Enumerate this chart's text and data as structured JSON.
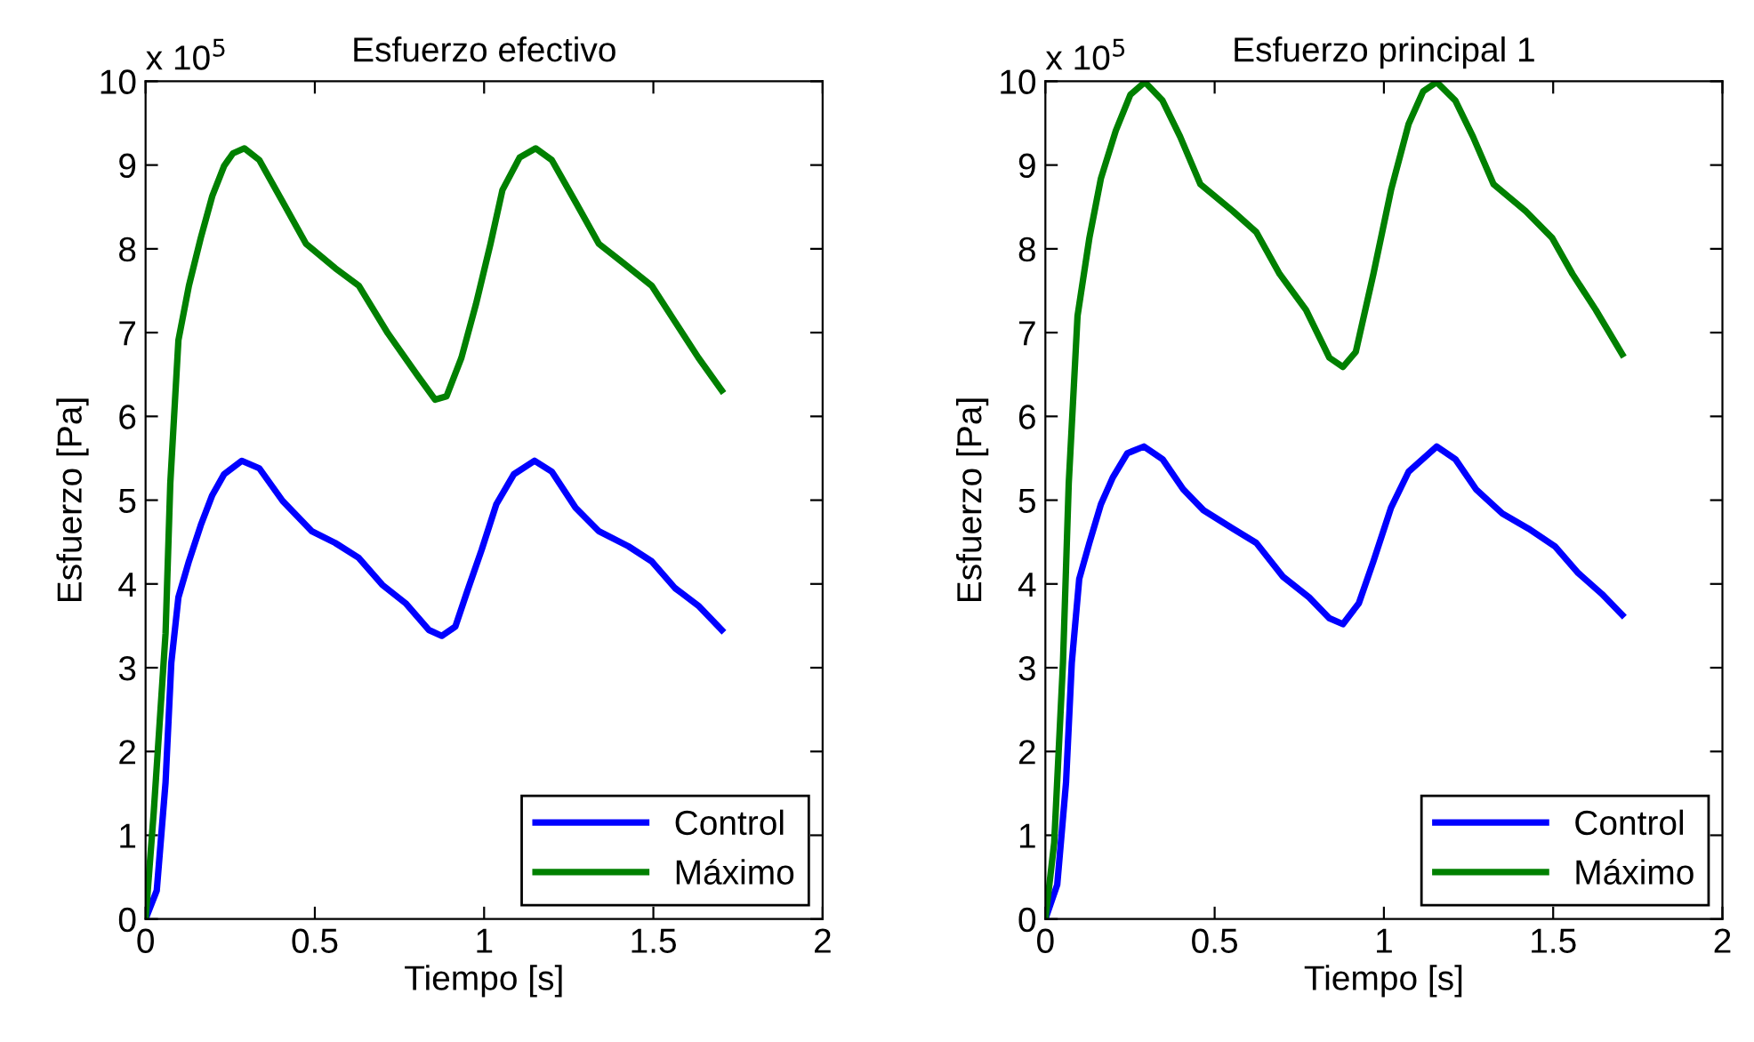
{
  "chart_data": [
    {
      "type": "line",
      "title": "Esfuerzo efectivo",
      "xlabel": "Tiempo [s]",
      "ylabel": "Esfuerzo [Pa]",
      "annotations": [
        "x 10$^{5}$"
      ],
      "xlim": [
        0,
        2
      ],
      "xticks": [
        0,
        0.5,
        1,
        1.5,
        2
      ],
      "ylim": [
        0,
        10
      ],
      "yticks": [
        0,
        1,
        2,
        3,
        4,
        5,
        6,
        7,
        8,
        9,
        10
      ],
      "grid": false,
      "legend": "bottom right",
      "series": [
        {
          "name": "Control",
          "color": "#0000ff",
          "x": [
            0,
            0.033,
            0.059,
            0.076,
            0.097,
            0.128,
            0.163,
            0.197,
            0.232,
            0.284,
            0.336,
            0.405,
            0.491,
            0.56,
            0.63,
            0.699,
            0.768,
            0.837,
            0.875,
            0.915,
            0.95,
            0.993,
            1.036,
            1.088,
            1.149,
            1.2,
            1.27,
            1.339,
            1.426,
            1.495,
            1.564,
            1.633,
            1.702
          ],
          "values": [
            0,
            0.34,
            1.63,
            3.06,
            3.84,
            4.27,
            4.7,
            5.06,
            5.31,
            5.47,
            5.38,
            4.99,
            4.63,
            4.49,
            4.31,
            3.99,
            3.77,
            3.45,
            3.38,
            3.49,
            3.91,
            4.41,
            4.95,
            5.31,
            5.47,
            5.34,
            4.91,
            4.63,
            4.45,
            4.27,
            3.95,
            3.74,
            3.45
          ]
        },
        {
          "name": "Máximo",
          "color": "#008000",
          "x": [
            0,
            0.024,
            0.059,
            0.073,
            0.097,
            0.128,
            0.163,
            0.197,
            0.232,
            0.258,
            0.292,
            0.336,
            0.405,
            0.474,
            0.56,
            0.63,
            0.716,
            0.803,
            0.855,
            0.889,
            0.933,
            0.976,
            1.019,
            1.054,
            1.105,
            1.152,
            1.2,
            1.27,
            1.339,
            1.408,
            1.495,
            1.564,
            1.633,
            1.702
          ],
          "values": [
            0,
            1.27,
            3.41,
            5.2,
            6.91,
            7.56,
            8.13,
            8.63,
            8.99,
            9.14,
            9.2,
            9.06,
            8.56,
            8.06,
            7.77,
            7.56,
            6.99,
            6.49,
            6.2,
            6.24,
            6.7,
            7.34,
            8.06,
            8.7,
            9.09,
            9.2,
            9.06,
            8.56,
            8.06,
            7.84,
            7.56,
            7.13,
            6.7,
            6.31
          ]
        }
      ]
    },
    {
      "type": "line",
      "title": "Esfuerzo principal 1",
      "xlabel": "Tiempo [s]",
      "ylabel": "Esfuerzo [Pa]",
      "annotations": [
        "x 10$^{5}$"
      ],
      "xlim": [
        0,
        2
      ],
      "xticks": [
        0,
        0.5,
        1,
        1.5,
        2
      ],
      "ylim": [
        0,
        10
      ],
      "yticks": [
        0,
        1,
        2,
        3,
        4,
        5,
        6,
        7,
        8,
        9,
        10
      ],
      "grid": false,
      "legend": "bottom right",
      "series": [
        {
          "name": "Control",
          "color": "#0000ff",
          "x": [
            0,
            0.035,
            0.061,
            0.078,
            0.1,
            0.13,
            0.164,
            0.199,
            0.242,
            0.291,
            0.346,
            0.407,
            0.467,
            0.554,
            0.623,
            0.701,
            0.779,
            0.839,
            0.879,
            0.926,
            0.969,
            1.021,
            1.073,
            1.156,
            1.211,
            1.272,
            1.35,
            1.427,
            1.505,
            1.574,
            1.644,
            1.704
          ],
          "values": [
            0,
            0.41,
            1.63,
            3.06,
            4.06,
            4.49,
            4.95,
            5.27,
            5.56,
            5.64,
            5.49,
            5.13,
            4.88,
            4.66,
            4.49,
            4.09,
            3.84,
            3.59,
            3.52,
            3.77,
            4.27,
            4.91,
            5.34,
            5.64,
            5.49,
            5.13,
            4.84,
            4.66,
            4.45,
            4.13,
            3.88,
            3.63
          ]
        },
        {
          "name": "Máximo",
          "color": "#008000",
          "x": [
            0,
            0.026,
            0.052,
            0.069,
            0.095,
            0.13,
            0.164,
            0.208,
            0.251,
            0.294,
            0.346,
            0.398,
            0.458,
            0.554,
            0.623,
            0.692,
            0.77,
            0.839,
            0.879,
            0.917,
            0.969,
            1.021,
            1.073,
            1.116,
            1.156,
            1.211,
            1.263,
            1.324,
            1.419,
            1.497,
            1.557,
            1.626,
            1.704
          ],
          "values": [
            0,
            0.91,
            3.06,
            5.2,
            7.2,
            8.13,
            8.84,
            9.41,
            9.84,
            9.99,
            9.77,
            9.34,
            8.77,
            8.45,
            8.2,
            7.7,
            7.27,
            6.7,
            6.59,
            6.77,
            7.7,
            8.7,
            9.49,
            9.88,
            9.99,
            9.77,
            9.34,
            8.77,
            8.45,
            8.13,
            7.7,
            7.27,
            6.74
          ]
        }
      ]
    }
  ]
}
